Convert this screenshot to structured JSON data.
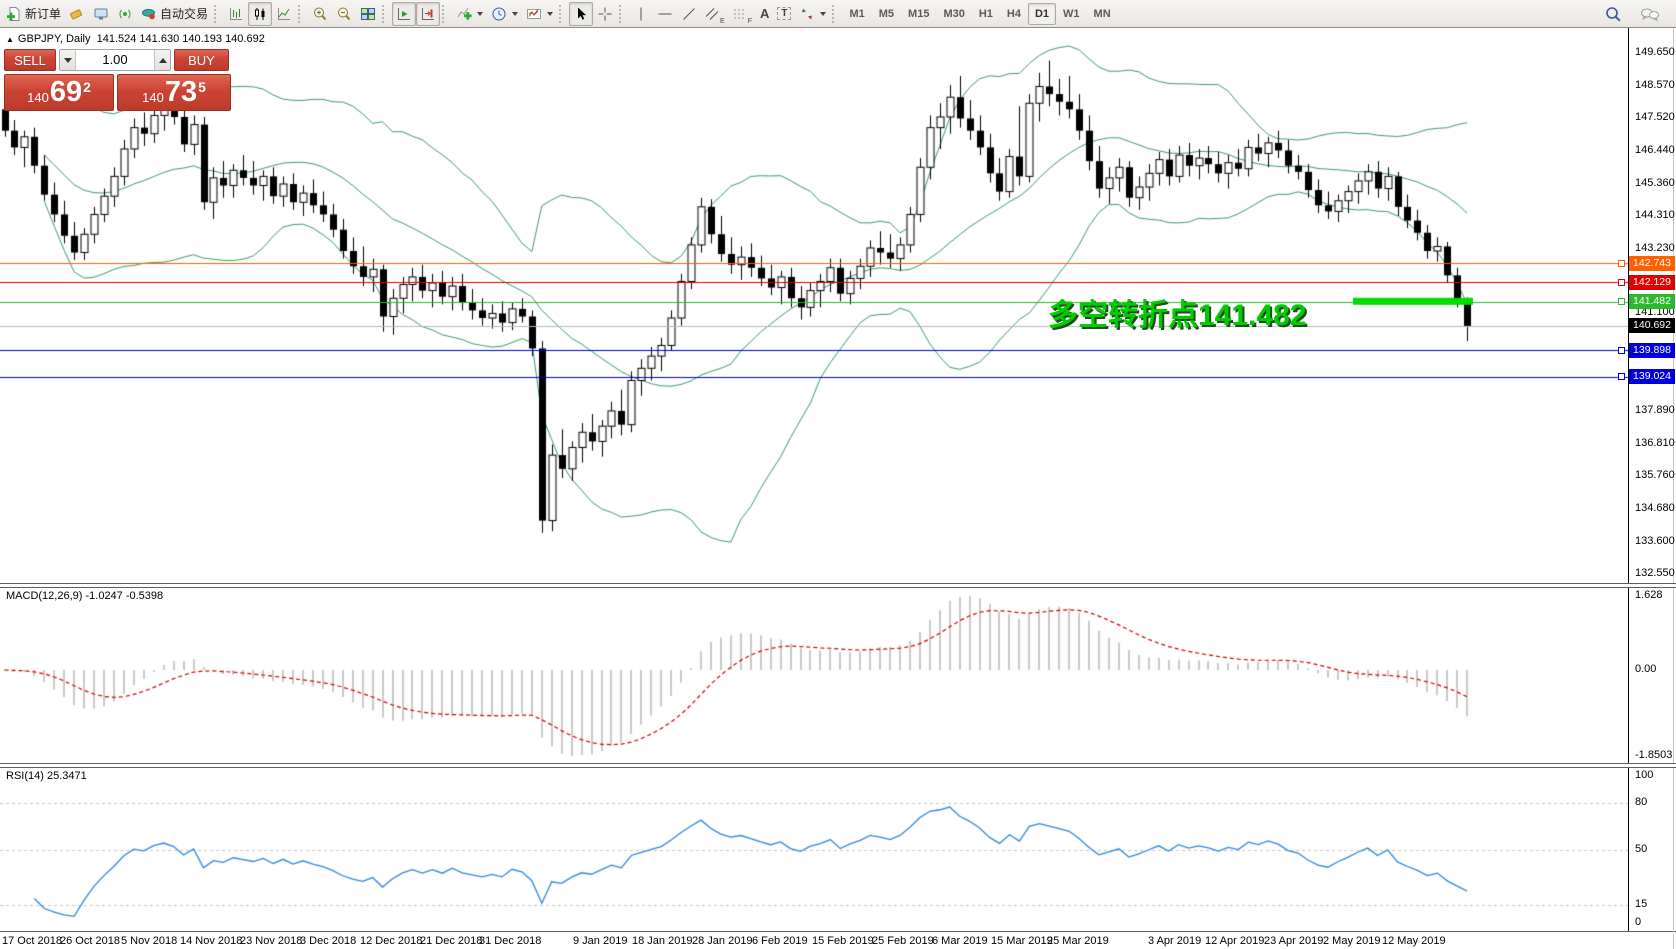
{
  "toolbar": {
    "new_order_label": "新订单",
    "auto_trading_label": "自动交易",
    "timeframes": [
      "M1",
      "M5",
      "M15",
      "M30",
      "H1",
      "H4",
      "D1",
      "W1",
      "MN"
    ],
    "active_timeframe": "D1",
    "letters": {
      "text_icon": "A",
      "label_icon": "T",
      "channel_sub": "E",
      "fibo_sub": "F"
    }
  },
  "one_click": {
    "sell_label": "SELL",
    "buy_label": "BUY",
    "volume": "1.00",
    "sell_price": {
      "prefix": "140",
      "big": "69",
      "sup": "2"
    },
    "buy_price": {
      "prefix": "140",
      "big": "73",
      "sup": "5"
    }
  },
  "chart_data": [
    {
      "type": "candlestick",
      "symbol": "GBPJPY",
      "period": "Daily",
      "title_marker": "▲",
      "title_symbol": "GBPJPY, Daily",
      "title_ohlc": "141.524 141.630 140.193 140.692",
      "last_ohlc": {
        "open": 141.524,
        "high": 141.63,
        "low": 140.193,
        "close": 140.692
      },
      "y_ticks": [
        {
          "value": 149.65,
          "label": "149.650"
        },
        {
          "value": 148.57,
          "label": "148.570"
        },
        {
          "value": 147.52,
          "label": "147.520"
        },
        {
          "value": 146.44,
          "label": "146.440"
        },
        {
          "value": 145.36,
          "label": "145.360"
        },
        {
          "value": 144.31,
          "label": "144.310"
        },
        {
          "value": 143.23,
          "label": "143.230"
        },
        {
          "value": 141.1,
          "label": "141.100"
        },
        {
          "value": 137.89,
          "label": "137.890"
        },
        {
          "value": 136.81,
          "label": "136.810"
        },
        {
          "value": 135.76,
          "label": "135.760"
        },
        {
          "value": 134.68,
          "label": "134.680"
        },
        {
          "value": 133.6,
          "label": "133.600"
        },
        {
          "value": 132.55,
          "label": "132.550"
        }
      ],
      "hlines": [
        {
          "value": 142.743,
          "label": "142.743",
          "color": "#ff6000",
          "kind": "object"
        },
        {
          "value": 142.129,
          "label": "142.129",
          "color": "#e00000",
          "kind": "object"
        },
        {
          "value": 141.482,
          "label": "141.482",
          "color": "#2eb82e",
          "kind": "object"
        },
        {
          "value": 140.692,
          "label": "140.692",
          "color": "#000000",
          "kind": "bid"
        },
        {
          "value": 139.898,
          "label": "139.898",
          "color": "#0000dd",
          "kind": "object"
        },
        {
          "value": 139.024,
          "label": "139.024",
          "color": "#0000dd",
          "kind": "object"
        }
      ],
      "highlight": {
        "value": 141.482,
        "color": "#00dd00"
      },
      "annotation": {
        "text": "多空转折点141.482",
        "color": "#00cd00"
      },
      "overlays": [
        {
          "name": "Bollinger Bands",
          "period": 20,
          "deviation": 2,
          "color": "#3c9b69"
        }
      ],
      "x_labels": [
        "17 Oct 2018",
        "26 Oct 2018",
        "5 Nov 2018",
        "14 Nov 2018",
        "23 Nov 2018",
        "3 Dec 2018",
        "12 Dec 2018",
        "21 Dec 2018",
        "31 Dec 2018",
        "9 Jan 2019",
        "18 Jan 2019",
        "28 Jan 2019",
        "6 Feb 2019",
        "15 Feb 2019",
        "25 Feb 2019",
        "6 Mar 2019",
        "15 Mar 2019",
        "25 Mar 2019",
        "3 Apr 2019",
        "12 Apr 2019",
        "23 Apr 2019",
        "2 May 2019",
        "12 May 2019"
      ],
      "candles": [
        [
          147.8,
          148.1,
          146.9,
          147.1
        ],
        [
          147.1,
          147.45,
          146.3,
          146.55
        ],
        [
          146.55,
          147.1,
          145.9,
          146.9
        ],
        [
          146.9,
          147.2,
          145.7,
          145.95
        ],
        [
          145.95,
          146.3,
          144.8,
          145.0
        ],
        [
          145.0,
          145.4,
          144.1,
          144.35
        ],
        [
          144.35,
          144.8,
          143.4,
          143.65
        ],
        [
          143.65,
          144.1,
          142.85,
          143.1
        ],
        [
          143.1,
          143.9,
          142.85,
          143.7
        ],
        [
          143.7,
          144.6,
          143.4,
          144.35
        ],
        [
          144.35,
          145.2,
          144.1,
          144.95
        ],
        [
          144.95,
          145.9,
          144.6,
          145.6
        ],
        [
          145.6,
          146.8,
          145.3,
          146.5
        ],
        [
          146.5,
          147.5,
          146.2,
          147.2
        ],
        [
          147.2,
          147.7,
          146.6,
          147.0
        ],
        [
          147.0,
          147.9,
          146.7,
          147.6
        ],
        [
          147.6,
          148.2,
          147.1,
          147.9
        ],
        [
          147.9,
          148.45,
          147.3,
          147.55
        ],
        [
          147.55,
          147.8,
          146.4,
          146.65
        ],
        [
          146.65,
          147.6,
          146.3,
          147.3
        ],
        [
          147.3,
          147.55,
          144.5,
          144.75
        ],
        [
          144.75,
          145.9,
          144.2,
          145.55
        ],
        [
          145.55,
          146.1,
          144.9,
          145.3
        ],
        [
          145.3,
          146.0,
          144.9,
          145.8
        ],
        [
          145.8,
          146.3,
          145.3,
          145.55
        ],
        [
          145.55,
          146.1,
          145.0,
          145.3
        ],
        [
          145.3,
          145.8,
          144.8,
          145.6
        ],
        [
          145.6,
          145.9,
          144.7,
          144.95
        ],
        [
          144.95,
          145.6,
          144.6,
          145.35
        ],
        [
          145.35,
          145.7,
          144.5,
          144.75
        ],
        [
          144.75,
          145.3,
          144.3,
          145.05
        ],
        [
          145.05,
          145.5,
          144.4,
          144.65
        ],
        [
          144.65,
          145.1,
          144.1,
          144.35
        ],
        [
          144.35,
          144.7,
          143.6,
          143.85
        ],
        [
          143.85,
          144.2,
          142.9,
          143.15
        ],
        [
          143.15,
          143.6,
          142.4,
          142.65
        ],
        [
          142.65,
          143.3,
          142.0,
          142.3
        ],
        [
          142.3,
          142.9,
          141.8,
          142.55
        ],
        [
          142.55,
          142.7,
          140.5,
          141.0
        ],
        [
          141.0,
          141.9,
          140.4,
          141.6
        ],
        [
          141.6,
          142.3,
          141.1,
          142.05
        ],
        [
          142.05,
          142.6,
          141.5,
          142.3
        ],
        [
          142.3,
          142.7,
          141.6,
          141.85
        ],
        [
          141.85,
          142.4,
          141.3,
          142.1
        ],
        [
          142.1,
          142.5,
          141.4,
          141.65
        ],
        [
          141.65,
          142.3,
          141.2,
          142.0
        ],
        [
          142.0,
          142.4,
          141.2,
          141.45
        ],
        [
          141.45,
          141.9,
          140.9,
          141.2
        ],
        [
          141.2,
          141.6,
          140.7,
          140.95
        ],
        [
          140.95,
          141.4,
          140.6,
          141.1
        ],
        [
          141.1,
          141.5,
          140.5,
          140.8
        ],
        [
          140.8,
          141.45,
          140.55,
          141.25
        ],
        [
          141.25,
          141.6,
          140.8,
          141.0
        ],
        [
          141.0,
          141.2,
          139.7,
          139.95
        ],
        [
          139.95,
          140.2,
          133.9,
          134.3
        ],
        [
          134.3,
          136.8,
          133.95,
          136.45
        ],
        [
          136.45,
          137.3,
          135.7,
          136.0
        ],
        [
          136.0,
          136.9,
          135.6,
          136.7
        ],
        [
          136.7,
          137.5,
          136.2,
          137.2
        ],
        [
          137.2,
          137.8,
          136.6,
          136.9
        ],
        [
          136.9,
          137.6,
          136.4,
          137.4
        ],
        [
          137.4,
          138.2,
          137.0,
          137.9
        ],
        [
          137.9,
          138.6,
          137.1,
          137.45
        ],
        [
          137.45,
          139.2,
          137.2,
          138.9
        ],
        [
          138.9,
          139.6,
          138.4,
          139.3
        ],
        [
          139.3,
          140.0,
          138.9,
          139.7
        ],
        [
          139.7,
          140.3,
          139.2,
          140.05
        ],
        [
          140.05,
          141.2,
          139.9,
          140.95
        ],
        [
          140.95,
          142.4,
          140.7,
          142.15
        ],
        [
          142.15,
          143.6,
          141.9,
          143.35
        ],
        [
          143.35,
          144.9,
          143.1,
          144.6
        ],
        [
          144.6,
          144.85,
          143.4,
          143.7
        ],
        [
          143.7,
          144.3,
          142.8,
          143.05
        ],
        [
          143.05,
          143.6,
          142.4,
          142.7
        ],
        [
          142.7,
          143.3,
          142.2,
          142.95
        ],
        [
          142.95,
          143.4,
          142.3,
          142.6
        ],
        [
          142.6,
          143.0,
          142.0,
          142.25
        ],
        [
          142.25,
          142.7,
          141.7,
          141.95
        ],
        [
          141.95,
          142.5,
          141.4,
          142.3
        ],
        [
          142.3,
          142.6,
          141.3,
          141.6
        ],
        [
          141.6,
          142.0,
          140.9,
          141.3
        ],
        [
          141.3,
          142.1,
          141.0,
          141.85
        ],
        [
          141.85,
          142.4,
          141.3,
          142.15
        ],
        [
          142.15,
          142.9,
          141.8,
          142.6
        ],
        [
          142.6,
          142.9,
          141.5,
          141.75
        ],
        [
          141.75,
          142.5,
          141.4,
          142.25
        ],
        [
          142.25,
          142.9,
          141.9,
          142.65
        ],
        [
          142.65,
          143.5,
          142.3,
          143.25
        ],
        [
          143.25,
          143.8,
          142.7,
          143.1
        ],
        [
          143.1,
          143.7,
          142.6,
          142.9
        ],
        [
          142.9,
          143.6,
          142.5,
          143.35
        ],
        [
          143.35,
          144.6,
          143.1,
          144.35
        ],
        [
          144.35,
          146.2,
          144.1,
          145.9
        ],
        [
          145.9,
          147.6,
          145.5,
          147.2
        ],
        [
          147.2,
          148.0,
          146.5,
          147.55
        ],
        [
          147.55,
          148.6,
          147.0,
          148.2
        ],
        [
          148.2,
          148.9,
          147.2,
          147.5
        ],
        [
          147.5,
          148.1,
          146.8,
          147.1
        ],
        [
          147.1,
          147.6,
          146.3,
          146.55
        ],
        [
          146.55,
          147.0,
          145.4,
          145.7
        ],
        [
          145.7,
          146.2,
          144.8,
          145.1
        ],
        [
          145.1,
          146.5,
          144.9,
          146.25
        ],
        [
          146.25,
          147.9,
          145.3,
          145.6
        ],
        [
          145.6,
          148.3,
          145.4,
          148.0
        ],
        [
          148.0,
          149.0,
          147.4,
          148.55
        ],
        [
          148.55,
          149.4,
          147.9,
          148.3
        ],
        [
          148.3,
          148.8,
          147.6,
          148.05
        ],
        [
          148.05,
          148.9,
          147.5,
          147.8
        ],
        [
          147.8,
          148.3,
          146.8,
          147.1
        ],
        [
          147.1,
          147.6,
          145.8,
          146.1
        ],
        [
          146.1,
          146.6,
          144.9,
          145.2
        ],
        [
          145.2,
          145.9,
          144.7,
          145.55
        ],
        [
          145.55,
          146.2,
          145.1,
          145.9
        ],
        [
          145.9,
          146.1,
          144.6,
          144.9
        ],
        [
          144.9,
          145.6,
          144.5,
          145.25
        ],
        [
          145.25,
          146.0,
          144.8,
          145.7
        ],
        [
          145.7,
          146.4,
          145.3,
          146.15
        ],
        [
          146.15,
          146.5,
          145.3,
          145.6
        ],
        [
          145.6,
          146.6,
          145.4,
          146.3
        ],
        [
          146.3,
          146.7,
          145.6,
          145.95
        ],
        [
          145.95,
          146.5,
          145.5,
          146.2
        ],
        [
          146.2,
          146.6,
          145.7,
          146.0
        ],
        [
          146.0,
          146.4,
          145.4,
          145.7
        ],
        [
          145.7,
          146.3,
          145.2,
          146.05
        ],
        [
          146.05,
          146.5,
          145.6,
          145.85
        ],
        [
          145.85,
          146.8,
          145.6,
          146.55
        ],
        [
          146.55,
          147.0,
          146.1,
          146.35
        ],
        [
          146.35,
          146.9,
          145.9,
          146.7
        ],
        [
          146.7,
          147.1,
          146.2,
          146.45
        ],
        [
          146.45,
          146.8,
          145.7,
          145.95
        ],
        [
          145.95,
          146.3,
          145.5,
          145.75
        ],
        [
          145.75,
          146.0,
          144.9,
          145.15
        ],
        [
          145.15,
          145.5,
          144.4,
          144.65
        ],
        [
          144.65,
          145.1,
          144.2,
          144.45
        ],
        [
          144.45,
          145.0,
          144.1,
          144.8
        ],
        [
          144.8,
          145.3,
          144.4,
          145.1
        ],
        [
          145.1,
          145.7,
          144.7,
          145.45
        ],
        [
          145.45,
          146.0,
          145.0,
          145.75
        ],
        [
          145.75,
          146.1,
          144.9,
          145.2
        ],
        [
          145.2,
          145.9,
          144.8,
          145.6
        ],
        [
          145.6,
          145.75,
          144.3,
          144.6
        ],
        [
          144.6,
          145.0,
          143.9,
          144.15
        ],
        [
          144.15,
          144.5,
          143.5,
          143.75
        ],
        [
          143.75,
          144.0,
          142.9,
          143.15
        ],
        [
          143.15,
          143.6,
          142.8,
          143.3
        ],
        [
          143.3,
          143.45,
          142.1,
          142.35
        ],
        [
          142.35,
          142.6,
          141.3,
          141.55
        ],
        [
          141.524,
          141.63,
          140.193,
          140.692
        ]
      ]
    },
    {
      "type": "bar",
      "name": "MACD",
      "label": "MACD(12,26,9)",
      "values_text": "-1.0247 -0.5398",
      "last_macd": -1.0247,
      "last_signal": -0.5398,
      "params": {
        "fast": 12,
        "slow": 26,
        "signal": 9
      },
      "y_ticks": [
        {
          "value": 1.628,
          "label": "1.628"
        },
        {
          "value": 0,
          "label": "0.00"
        },
        {
          "value": -1.8503,
          "label": "-1.8503"
        }
      ],
      "histogram_color": "#c9c9c9",
      "signal_color": "#d40000",
      "derived_from": "candle closes: EMA12-EMA26, signal EMA9"
    },
    {
      "type": "line",
      "name": "RSI",
      "label": "RSI(14)",
      "value_text": "25.3471",
      "last": 25.3471,
      "period": 14,
      "levels": [
        80,
        50,
        15
      ],
      "y_ticks": [
        {
          "value": 100,
          "label": "100"
        },
        {
          "value": 80,
          "label": "80"
        },
        {
          "value": 50,
          "label": "50"
        },
        {
          "value": 15,
          "label": "15"
        },
        {
          "value": 0,
          "label": "0"
        }
      ],
      "color": "#2f86e0"
    }
  ]
}
